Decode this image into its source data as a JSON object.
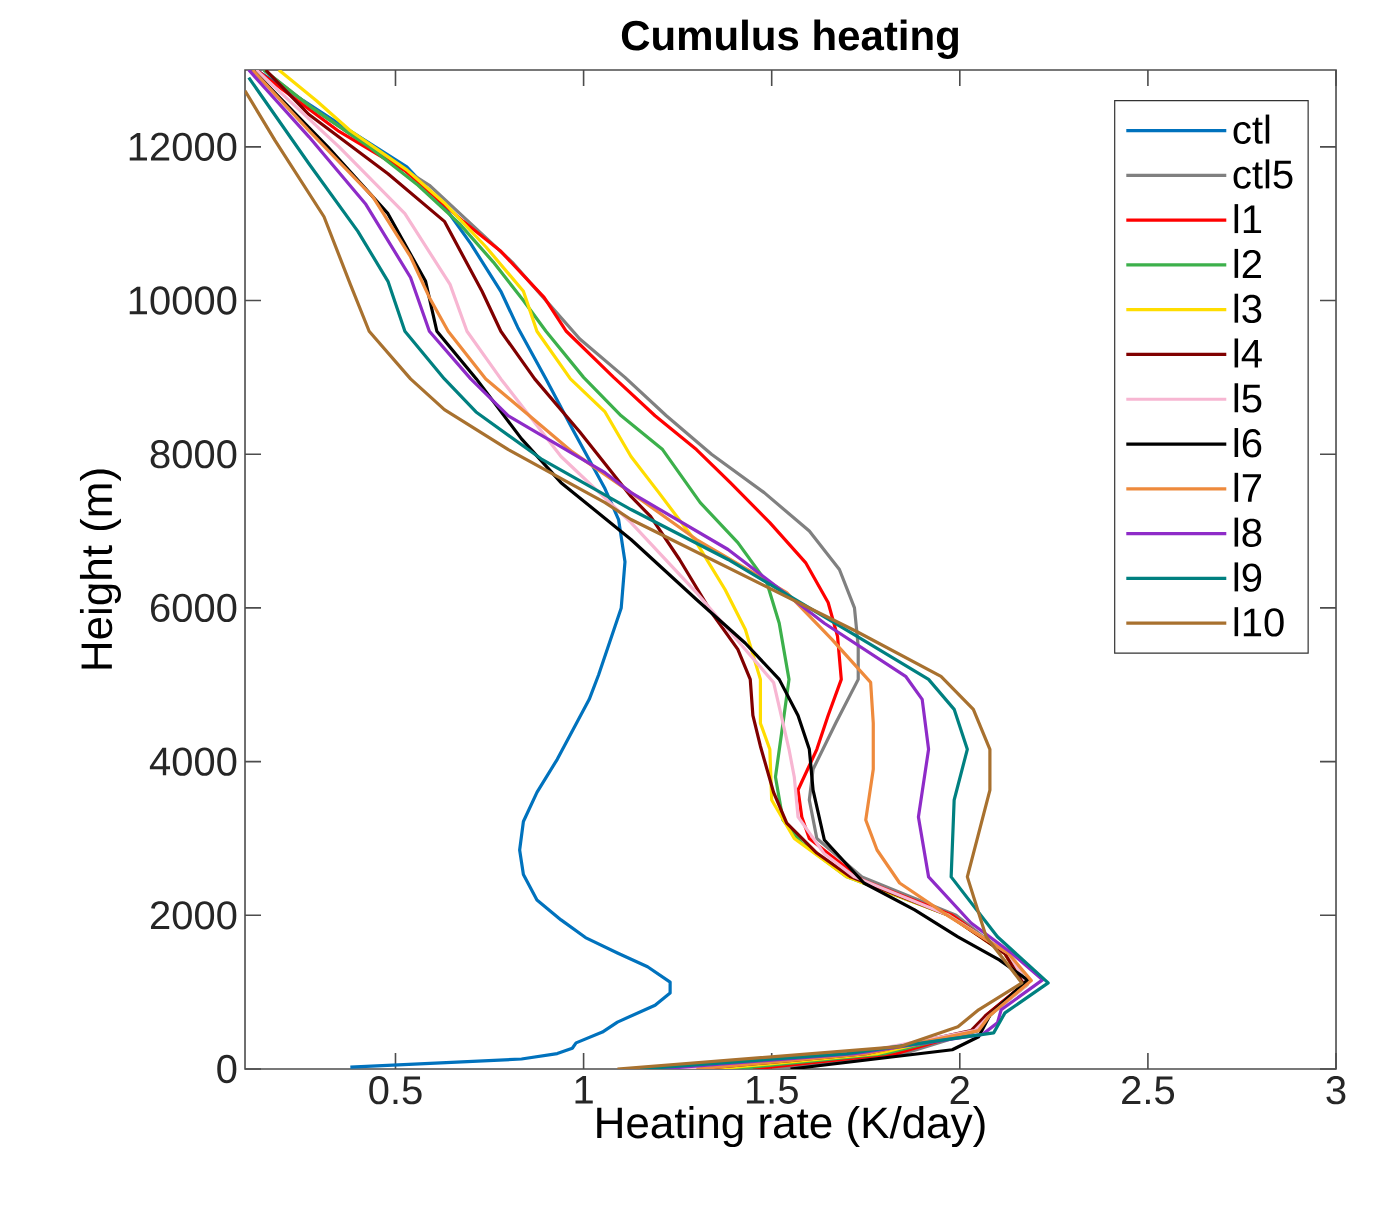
{
  "chart_data": {
    "type": "line",
    "title": "Cumulus heating",
    "xlabel": "Heating rate (K/day)",
    "ylabel": "Height (m)",
    "xlim": [
      0.1,
      3
    ],
    "ylim": [
      0,
      13000
    ],
    "xticks": [
      0.5,
      1,
      1.5,
      2,
      2.5,
      3
    ],
    "yticks": [
      0,
      2000,
      4000,
      6000,
      8000,
      10000,
      12000
    ],
    "legend": "top right",
    "series": [
      {
        "name": "ctl",
        "color": "#0072bd",
        "x": [
          0.38,
          0.835,
          0.93,
          0.97,
          0.98,
          1.05,
          1.09,
          1.19,
          1.23,
          1.23,
          1.17,
          1.09,
          1.005,
          0.94,
          0.876,
          0.84,
          0.83,
          0.84,
          0.876,
          0.93,
          1.015,
          1.04,
          1.1,
          1.11,
          1.093,
          1.057,
          0.97,
          0.9,
          0.825,
          0.78,
          0.7,
          0.63,
          0.53,
          0.35,
          0.13
        ],
        "values": [
          25,
          130,
          200,
          270,
          340,
          480,
          610,
          830,
          990,
          1130,
          1330,
          1510,
          1710,
          1940,
          2200,
          2530,
          2850,
          3220,
          3600,
          4030,
          4810,
          5130,
          6000,
          6600,
          7150,
          7550,
          8330,
          8980,
          9650,
          10120,
          10740,
          11220,
          11740,
          12300,
          13000
        ]
      },
      {
        "name": "ctl5",
        "color": "#808080",
        "x": [
          1.5,
          1.85,
          2.05,
          2.08,
          2.17,
          2.12,
          1.99,
          1.74,
          1.62,
          1.6,
          1.61,
          1.67,
          1.73,
          1.73,
          1.72,
          1.68,
          1.6,
          1.48,
          1.34,
          1.22,
          1.11,
          0.99,
          0.9,
          0.81,
          0.7,
          0.59,
          0.43,
          0.28,
          0.15
        ],
        "values": [
          0,
          200,
          500,
          700,
          1100,
          1500,
          2000,
          2500,
          3000,
          3500,
          3900,
          4500,
          5070,
          5500,
          6000,
          6500,
          7000,
          7500,
          8000,
          8500,
          9000,
          9500,
          10000,
          10500,
          11000,
          11500,
          12000,
          12500,
          13000
        ]
      },
      {
        "name": "l1",
        "color": "#ff0000",
        "x": [
          1.45,
          1.83,
          2.04,
          2.07,
          2.17,
          2.12,
          1.98,
          1.74,
          1.6,
          1.58,
          1.57,
          1.62,
          1.65,
          1.685,
          1.675,
          1.65,
          1.59,
          1.495,
          1.39,
          1.3,
          1.19,
          1.08,
          0.954,
          0.895,
          0.78,
          0.68,
          0.525,
          0.35,
          0.13
        ],
        "values": [
          0,
          200,
          500,
          700,
          1100,
          1500,
          2000,
          2460,
          3000,
          3280,
          3630,
          4160,
          4600,
          5070,
          5630,
          6070,
          6590,
          7110,
          7630,
          8060,
          8500,
          9000,
          9600,
          10040,
          10640,
          11030,
          11690,
          12200,
          13000
        ]
      },
      {
        "name": "l2",
        "color": "#3cb04b",
        "x": [
          1.4,
          1.8,
          2.05,
          2.08,
          2.18,
          2.13,
          1.97,
          1.7,
          1.58,
          1.53,
          1.51,
          1.53,
          1.546,
          1.52,
          1.487,
          1.41,
          1.31,
          1.21,
          1.1,
          1.0,
          0.9,
          0.84,
          0.76,
          0.67,
          0.56,
          0.43,
          0.28,
          0.15
        ],
        "values": [
          0,
          200,
          500,
          700,
          1100,
          1500,
          2000,
          2500,
          2940,
          3240,
          3800,
          4500,
          5070,
          5800,
          6330,
          6850,
          7370,
          8060,
          8500,
          9000,
          9600,
          10000,
          10500,
          11000,
          11500,
          12000,
          12500,
          13000
        ]
      },
      {
        "name": "l3",
        "color": "#ffdd00",
        "x": [
          1.35,
          1.78,
          2.04,
          2.08,
          2.17,
          2.12,
          1.97,
          1.7,
          1.56,
          1.5,
          1.495,
          1.47,
          1.47,
          1.43,
          1.376,
          1.3,
          1.2,
          1.126,
          1.057,
          0.965,
          0.876,
          0.84,
          0.74,
          0.63,
          0.53,
          0.38,
          0.29,
          0.19
        ],
        "values": [
          0,
          200,
          500,
          700,
          1100,
          1500,
          2000,
          2500,
          3000,
          3500,
          4160,
          4500,
          5070,
          5720,
          6240,
          6850,
          7500,
          7970,
          8550,
          8980,
          9600,
          10120,
          10700,
          11270,
          11700,
          12210,
          12600,
          13000
        ]
      },
      {
        "name": "l4",
        "color": "#800000",
        "x": [
          1.3,
          1.75,
          2.03,
          2.07,
          2.17,
          2.12,
          1.97,
          1.71,
          1.62,
          1.54,
          1.505,
          1.47,
          1.45,
          1.443,
          1.41,
          1.34,
          1.255,
          1.178,
          1.126,
          0.99,
          0.87,
          0.78,
          0.73,
          0.63,
          0.48,
          0.27,
          0.155
        ],
        "values": [
          0,
          200,
          500,
          700,
          1100,
          1500,
          2000,
          2500,
          2810,
          3200,
          3600,
          4200,
          4600,
          5070,
          5460,
          5940,
          6630,
          7190,
          7450,
          8290,
          8980,
          9600,
          10120,
          11030,
          11650,
          12420,
          13000
        ]
      },
      {
        "name": "l5",
        "color": "#f7b6d2",
        "x": [
          1.25,
          1.72,
          2.04,
          2.08,
          2.18,
          2.13,
          1.97,
          1.72,
          1.64,
          1.57,
          1.56,
          1.546,
          1.505,
          1.384,
          1.3,
          1.126,
          0.94,
          0.78,
          0.69,
          0.645,
          0.525,
          0.35,
          0.24,
          0.13
        ],
        "values": [
          0,
          200,
          500,
          700,
          1100,
          1500,
          2000,
          2500,
          2800,
          3280,
          3800,
          4160,
          5030,
          5720,
          6200,
          7110,
          7970,
          8980,
          9600,
          10210,
          11130,
          12000,
          12500,
          13000
        ]
      },
      {
        "name": "l6",
        "color": "#000000",
        "x": [
          1.55,
          1.98,
          2.05,
          2.08,
          2.18,
          2.105,
          1.995,
          1.88,
          1.745,
          1.64,
          1.61,
          1.6,
          1.57,
          1.52,
          1.43,
          1.3,
          1.126,
          0.94,
          0.835,
          0.715,
          0.61,
          0.58,
          0.48,
          0.32,
          0.22,
          0.12
        ],
        "values": [
          0,
          250,
          420,
          700,
          1160,
          1420,
          1720,
          2070,
          2420,
          2980,
          3630,
          4160,
          4600,
          5070,
          5540,
          6110,
          6890,
          7630,
          8200,
          8980,
          9600,
          10250,
          11130,
          12000,
          12500,
          13000
        ]
      },
      {
        "name": "l7",
        "color": "#ee8a3c",
        "x": [
          1.3,
          1.75,
          2.05,
          2.08,
          2.19,
          2.13,
          1.97,
          1.84,
          1.78,
          1.75,
          1.77,
          1.77,
          1.763,
          1.66,
          1.54,
          1.3,
          1.126,
          0.97,
          0.74,
          0.64,
          0.59,
          0.54,
          0.44,
          0.27,
          0.12
        ],
        "values": [
          0,
          200,
          500,
          700,
          1150,
          1500,
          1990,
          2420,
          2850,
          3240,
          3900,
          4500,
          5030,
          5590,
          6200,
          6890,
          7500,
          8030,
          8980,
          9600,
          10040,
          10570,
          11350,
          12210,
          13000
        ]
      },
      {
        "name": "l8",
        "color": "#8e2bc8",
        "x": [
          1.2,
          1.72,
          2.06,
          2.1,
          2.11,
          2.22,
          2.14,
          2.03,
          1.917,
          1.89,
          1.917,
          1.9,
          1.856,
          1.64,
          1.384,
          1.126,
          1.057,
          0.8,
          0.7,
          0.59,
          0.54,
          0.42,
          0.27,
          0.11
        ],
        "values": [
          0,
          200,
          450,
          600,
          770,
          1160,
          1500,
          1900,
          2500,
          3280,
          4160,
          4810,
          5110,
          5800,
          6760,
          7500,
          7760,
          8500,
          8980,
          9600,
          10300,
          11260,
          12130,
          13000
        ]
      },
      {
        "name": "l9",
        "color": "#008080",
        "x": [
          1.15,
          1.7,
          2.09,
          2.12,
          2.235,
          2.1,
          1.977,
          1.985,
          2.02,
          1.985,
          1.917,
          1.727,
          1.384,
          1.126,
          0.887,
          0.714,
          0.63,
          0.525,
          0.48,
          0.4,
          0.27,
          0.11
        ],
        "values": [
          0,
          200,
          470,
          730,
          1120,
          1720,
          2500,
          3500,
          4160,
          4680,
          5070,
          5630,
          6630,
          7280,
          7940,
          8550,
          8980,
          9600,
          10250,
          10900,
          11780,
          12900
        ]
      },
      {
        "name": "l10",
        "color": "#a8712f",
        "x": [
          1.09,
          1.84,
          1.995,
          2.05,
          2.165,
          2.07,
          2.02,
          2.08,
          2.08,
          2.036,
          1.95,
          1.727,
          1.126,
          1.057,
          0.8,
          0.63,
          0.54,
          0.43,
          0.38,
          0.31,
          0.18,
          0.1
        ],
        "values": [
          0,
          290,
          550,
          770,
          1120,
          1720,
          2500,
          3630,
          4160,
          4680,
          5110,
          5690,
          7150,
          7370,
          8060,
          8580,
          8980,
          9600,
          10210,
          11090,
          12080,
          12730
        ]
      }
    ]
  }
}
